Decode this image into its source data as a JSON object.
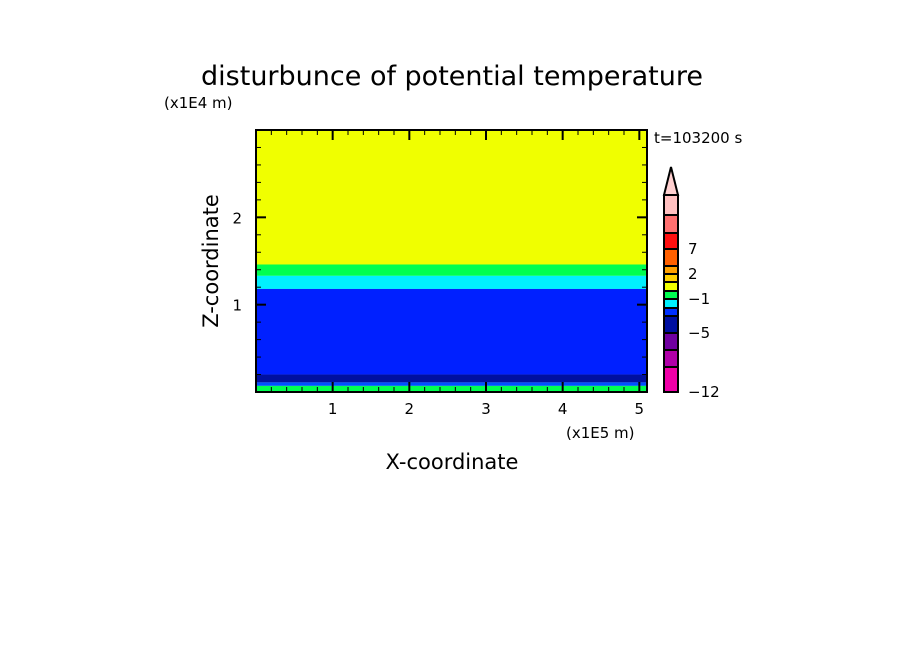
{
  "chart_data": {
    "type": "heatmap",
    "title": "disturbunce of potential temperature",
    "xlabel": "X-coordinate",
    "ylabel": "Z-coordinate",
    "x_unit": "(x1E5 m)",
    "y_unit": "(x1E4 m)",
    "time_label": "t=103200 s",
    "xlim": [
      0,
      5.1
    ],
    "ylim": [
      0,
      3.0
    ],
    "xticks": [
      1,
      2,
      3,
      4,
      5
    ],
    "yticks": [
      1,
      2
    ],
    "bands": [
      {
        "z0": 1.46,
        "z1": 3.0,
        "color": "#f0ff00"
      },
      {
        "z0": 1.33,
        "z1": 1.46,
        "color": "#00ff50"
      },
      {
        "z0": 1.18,
        "z1": 1.33,
        "color": "#00f0ff"
      },
      {
        "z0": 0.2,
        "z1": 1.18,
        "color": "#0020ff"
      },
      {
        "z0": 0.11,
        "z1": 0.2,
        "color": "#0010a0"
      },
      {
        "z0": 0.07,
        "z1": 0.11,
        "color": "#0050ff"
      },
      {
        "z0": 0.0,
        "z1": 0.07,
        "color": "#00ff50"
      }
    ],
    "colorbar": {
      "extend_top_color": "#ffd0d0",
      "colors": [
        "#ffc0c0",
        "#ff7070",
        "#ff1010",
        "#ff6000",
        "#ffa000",
        "#ffd000",
        "#f0ff00",
        "#00ff50",
        "#00f0ff",
        "#0030ff",
        "#000fa0",
        "#7000a0",
        "#b000a8",
        "#f000a8"
      ],
      "tick_labels": [
        {
          "label": "7",
          "index": 3
        },
        {
          "label": "2",
          "index": 5
        },
        {
          "label": "−1",
          "index": 8
        },
        {
          "label": "−5",
          "index": 11
        },
        {
          "label": "−12",
          "index": 14
        }
      ]
    }
  }
}
